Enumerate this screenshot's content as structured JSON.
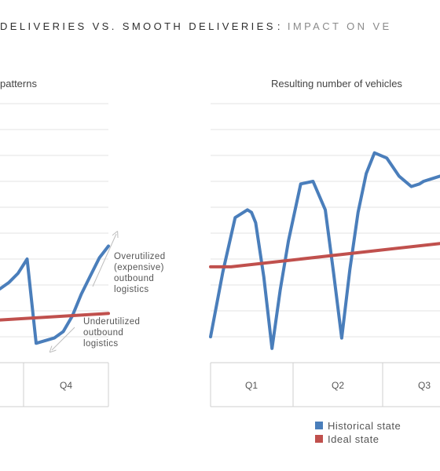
{
  "header": {
    "title_main": "DELIVERIES VS. SMOOTH DELIVERIES",
    "title_separator": ":",
    "title_sub": "IMPACT ON VE"
  },
  "chart_data": [
    {
      "type": "line",
      "title": "patterns",
      "categories": [
        "Q4"
      ],
      "annotations": [
        {
          "text": [
            "Overutilized",
            "(expensive)",
            "outbound",
            "logistics"
          ]
        },
        {
          "text": [
            "Underutilized",
            "outbound",
            "logistics"
          ]
        }
      ],
      "series": [
        {
          "name": "Historical state",
          "color": "#4a7ebb",
          "x": [
            0.0,
            0.3,
            0.6,
            0.9,
            1.2,
            1.5,
            1.8,
            2.1,
            2.4,
            2.7,
            3.0,
            3.3,
            3.6
          ],
          "values": [
            2.35,
            2.6,
            2.95,
            3.5,
            0.25,
            0.35,
            0.45,
            0.7,
            1.3,
            2.15,
            2.85,
            3.55,
            4.0
          ]
        },
        {
          "name": "Ideal state",
          "color": "#c0504d",
          "x": [
            0.0,
            3.6
          ],
          "values": [
            1.15,
            1.4
          ]
        }
      ],
      "ylim": [
        -0.5,
        9.5
      ],
      "grid": true
    },
    {
      "type": "line",
      "title": "Resulting number of vehicles",
      "categories": [
        "Q1",
        "Q2",
        "Q3"
      ],
      "series": [
        {
          "name": "Historical state",
          "color": "#4a7ebb",
          "x": [
            0.0,
            0.15,
            0.3,
            0.45,
            0.5,
            0.55,
            0.65,
            0.75,
            0.85,
            0.95,
            1.1,
            1.25,
            1.4,
            1.5,
            1.6,
            1.7,
            1.8,
            1.9,
            2.0,
            2.15,
            2.3,
            2.45,
            2.55,
            2.6,
            2.7,
            2.8
          ],
          "values": [
            0.0,
            2.5,
            4.6,
            4.9,
            4.8,
            4.4,
            2.3,
            -0.45,
            1.8,
            3.7,
            5.9,
            6.0,
            4.9,
            2.5,
            -0.05,
            2.6,
            4.8,
            6.3,
            7.1,
            6.9,
            6.2,
            5.8,
            5.9,
            6.0,
            6.1,
            6.2
          ]
        },
        {
          "name": "Ideal state",
          "color": "#c0504d",
          "x": [
            0.0,
            0.25,
            2.8
          ],
          "values": [
            2.7,
            2.7,
            3.6
          ]
        }
      ],
      "ylim": [
        -1,
        9
      ],
      "grid": true,
      "legend": {
        "placement": "bottom",
        "entries": [
          "Historical state",
          "Ideal state"
        ]
      }
    }
  ]
}
